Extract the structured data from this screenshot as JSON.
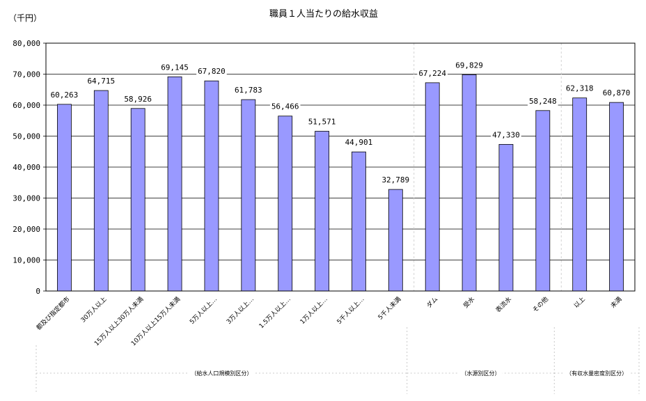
{
  "chart_data": {
    "type": "bar",
    "title": "職員１人当たりの給水収益",
    "ylabel": "（千円）",
    "ylim": [
      0,
      80000
    ],
    "ytick_labels": [
      "0",
      "10,000",
      "20,000",
      "30,000",
      "40,000",
      "50,000",
      "60,000",
      "70,000",
      "80,000"
    ],
    "categories": [
      "都及び指定都市",
      "30万人以上",
      "15万人以上30万人未満",
      "10万人以上15万人未満",
      "5万人以上…",
      "3万人以上…",
      "1.5万人以上…",
      "1万人以上…",
      "5千人以上…",
      "5千人未満",
      "ダム",
      "受水",
      "表流水",
      "その他",
      "以上",
      "未満"
    ],
    "values": [
      60263,
      64715,
      58926,
      69145,
      67820,
      61783,
      56466,
      51571,
      44901,
      32789,
      67224,
      69829,
      47330,
      58248,
      62318,
      60870
    ],
    "value_labels": [
      "60,263",
      "64,715",
      "58,926",
      "69,145",
      "67,820",
      "61,783",
      "56,466",
      "51,571",
      "44,901",
      "32,789",
      "67,224",
      "69,829",
      "47,330",
      "58,248",
      "62,318",
      "60,870"
    ],
    "groups": [
      {
        "label": "（給水人口規模別区分）",
        "start": 0,
        "end": 9
      },
      {
        "label": "（水源別区分）",
        "start": 10,
        "end": 13
      },
      {
        "label": "（有収水量密度別区分）",
        "start": 14,
        "end": 15
      }
    ],
    "grid": true,
    "colors": {
      "bar": "#9999ff"
    }
  }
}
